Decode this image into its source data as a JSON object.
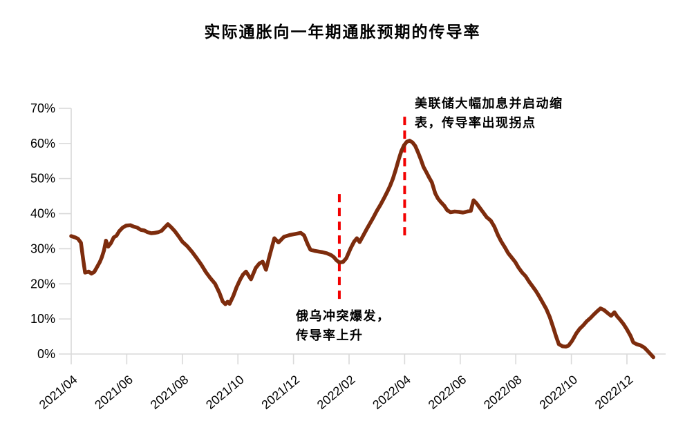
{
  "page": {
    "background_color": "#FFFFFF",
    "text_color": "#000000"
  },
  "chart_data": {
    "type": "line",
    "title": "实际通胀向一年期通胀预期的传导率",
    "xlabel": "",
    "ylabel": "",
    "grid": false,
    "legend_position": "none",
    "ylim": [
      0,
      70
    ],
    "y_tick_labels": [
      "0%",
      "10%",
      "20%",
      "30%",
      "40%",
      "50%",
      "60%",
      "70%"
    ],
    "x_tick_labels": [
      "2021/04",
      "2021/06",
      "2021/08",
      "2021/10",
      "2021/12",
      "2022/02",
      "2022/04",
      "2022/06",
      "2022/08",
      "2022/10",
      "2022/12"
    ],
    "x_unit": "months since 2021/04 (one x tick every 2 months)",
    "axis_color": "#D9D9D9",
    "line_color": "#7D2C0D",
    "event_dash_color": "#F20000",
    "series": [
      {
        "name": "传导率",
        "points": [
          [
            0,
            33.6
          ],
          [
            0.15,
            33.2
          ],
          [
            0.25,
            32.8
          ],
          [
            0.35,
            31.7
          ],
          [
            0.43,
            27
          ],
          [
            0.5,
            23.2
          ],
          [
            0.63,
            23.5
          ],
          [
            0.73,
            22.9
          ],
          [
            0.83,
            23.4
          ],
          [
            0.93,
            24.8
          ],
          [
            1.03,
            26.2
          ],
          [
            1.1,
            27.5
          ],
          [
            1.18,
            29.5
          ],
          [
            1.25,
            32.3
          ],
          [
            1.33,
            30.6
          ],
          [
            1.43,
            31.6
          ],
          [
            1.53,
            33.2
          ],
          [
            1.63,
            33.7
          ],
          [
            1.73,
            35
          ],
          [
            1.85,
            36
          ],
          [
            1.98,
            36.6
          ],
          [
            2.13,
            36.7
          ],
          [
            2.25,
            36.3
          ],
          [
            2.38,
            36
          ],
          [
            2.5,
            35.4
          ],
          [
            2.63,
            35.2
          ],
          [
            2.75,
            34.7
          ],
          [
            2.88,
            34.4
          ],
          [
            3,
            34.5
          ],
          [
            3.13,
            34.7
          ],
          [
            3.25,
            35.1
          ],
          [
            3.38,
            36.2
          ],
          [
            3.48,
            37
          ],
          [
            3.6,
            36.1
          ],
          [
            3.73,
            35
          ],
          [
            3.85,
            33.7
          ],
          [
            4,
            32
          ],
          [
            4.18,
            30.7
          ],
          [
            4.35,
            29.1
          ],
          [
            4.5,
            27.5
          ],
          [
            4.68,
            25.5
          ],
          [
            4.85,
            23.3
          ],
          [
            5,
            21.7
          ],
          [
            5.18,
            20
          ],
          [
            5.33,
            17.5
          ],
          [
            5.45,
            15
          ],
          [
            5.55,
            14.2
          ],
          [
            5.63,
            14.9
          ],
          [
            5.7,
            14.3
          ],
          [
            5.83,
            16.5
          ],
          [
            5.95,
            19
          ],
          [
            6.08,
            21.2
          ],
          [
            6.18,
            22.6
          ],
          [
            6.29,
            23.5
          ],
          [
            6.47,
            21.3
          ],
          [
            6.64,
            24.5
          ],
          [
            6.77,
            25.8
          ],
          [
            6.89,
            26.3
          ],
          [
            7.01,
            24
          ],
          [
            7.14,
            28
          ],
          [
            7.31,
            33
          ],
          [
            7.46,
            31.8
          ],
          [
            7.66,
            33.4
          ],
          [
            7.86,
            33.9
          ],
          [
            8.06,
            34.2
          ],
          [
            8.26,
            34.5
          ],
          [
            8.38,
            33.8
          ],
          [
            8.51,
            31.3
          ],
          [
            8.61,
            29.7
          ],
          [
            8.76,
            29.4
          ],
          [
            8.9,
            29.2
          ],
          [
            9.05,
            29
          ],
          [
            9.2,
            28.7
          ],
          [
            9.35,
            28.2
          ],
          [
            9.45,
            27.6
          ],
          [
            9.55,
            26.7
          ],
          [
            9.65,
            26.1
          ],
          [
            9.78,
            26.2
          ],
          [
            9.9,
            27.3
          ],
          [
            10.05,
            30
          ],
          [
            10.18,
            32
          ],
          [
            10.28,
            33
          ],
          [
            10.38,
            31.9
          ],
          [
            10.5,
            33.6
          ],
          [
            10.63,
            35.5
          ],
          [
            10.75,
            37.2
          ],
          [
            10.88,
            39
          ],
          [
            11,
            40.8
          ],
          [
            11.13,
            42.5
          ],
          [
            11.25,
            44.3
          ],
          [
            11.38,
            46.3
          ],
          [
            11.48,
            48
          ],
          [
            11.58,
            50
          ],
          [
            11.68,
            52.5
          ],
          [
            11.78,
            55.3
          ],
          [
            11.88,
            57.8
          ],
          [
            11.98,
            59.5
          ],
          [
            12.08,
            60.5
          ],
          [
            12.18,
            60.8
          ],
          [
            12.28,
            60.3
          ],
          [
            12.38,
            59.3
          ],
          [
            12.48,
            57.5
          ],
          [
            12.58,
            55.5
          ],
          [
            12.68,
            53.3
          ],
          [
            12.78,
            51.8
          ],
          [
            12.88,
            50.3
          ],
          [
            12.98,
            48.9
          ],
          [
            13.1,
            45.8
          ],
          [
            13.2,
            44.3
          ],
          [
            13.3,
            43.3
          ],
          [
            13.43,
            42.2
          ],
          [
            13.53,
            41
          ],
          [
            13.65,
            40.4
          ],
          [
            13.8,
            40.6
          ],
          [
            13.95,
            40.5
          ],
          [
            14.1,
            40.3
          ],
          [
            14.25,
            40.6
          ],
          [
            14.38,
            40.8
          ],
          [
            14.48,
            43.8
          ],
          [
            14.58,
            43
          ],
          [
            14.7,
            41.7
          ],
          [
            14.83,
            40.3
          ],
          [
            14.95,
            39
          ],
          [
            15.1,
            38
          ],
          [
            15.23,
            36.3
          ],
          [
            15.35,
            34
          ],
          [
            15.48,
            32
          ],
          [
            15.6,
            30.5
          ],
          [
            15.73,
            28.7
          ],
          [
            15.85,
            27.5
          ],
          [
            15.98,
            26.2
          ],
          [
            16.1,
            24.6
          ],
          [
            16.23,
            23.2
          ],
          [
            16.35,
            22.2
          ],
          [
            16.48,
            20.6
          ],
          [
            16.6,
            19.3
          ],
          [
            16.73,
            17.9
          ],
          [
            16.85,
            16.3
          ],
          [
            16.98,
            14.5
          ],
          [
            17.1,
            12.8
          ],
          [
            17.23,
            10.4
          ],
          [
            17.35,
            7.5
          ],
          [
            17.45,
            5
          ],
          [
            17.55,
            2.8
          ],
          [
            17.68,
            2.2
          ],
          [
            17.8,
            2.1
          ],
          [
            17.9,
            2.4
          ],
          [
            18.03,
            3.8
          ],
          [
            18.18,
            5.9
          ],
          [
            18.3,
            7.2
          ],
          [
            18.43,
            8.2
          ],
          [
            18.55,
            9.3
          ],
          [
            18.68,
            10.2
          ],
          [
            18.8,
            11.2
          ],
          [
            18.93,
            12.2
          ],
          [
            19.05,
            13
          ],
          [
            19.18,
            12.5
          ],
          [
            19.3,
            11.7
          ],
          [
            19.43,
            10.9
          ],
          [
            19.55,
            11.9
          ],
          [
            19.65,
            10.7
          ],
          [
            19.75,
            9.8
          ],
          [
            19.88,
            8.5
          ],
          [
            20,
            7
          ],
          [
            20.13,
            5.2
          ],
          [
            20.23,
            3.3
          ],
          [
            20.35,
            2.8
          ],
          [
            20.48,
            2.5
          ],
          [
            20.63,
            1.8
          ],
          [
            20.75,
            0.8
          ],
          [
            20.88,
            -0.3
          ],
          [
            20.95,
            -0.9
          ]
        ]
      }
    ],
    "annotations": [
      {
        "id": "war",
        "text": "俄乌冲突爆发，\n传导率上升",
        "x_month": 9.65,
        "dash_span_pct": [
          15.7,
          46.4
        ],
        "label_position": "below-line"
      },
      {
        "id": "fed",
        "text": "美联储大幅加息并启动缩\n表，传导率出现拐点",
        "x_month": 12.0,
        "dash_span_pct": [
          33.8,
          68.8
        ],
        "label_position": "above-line"
      }
    ]
  }
}
